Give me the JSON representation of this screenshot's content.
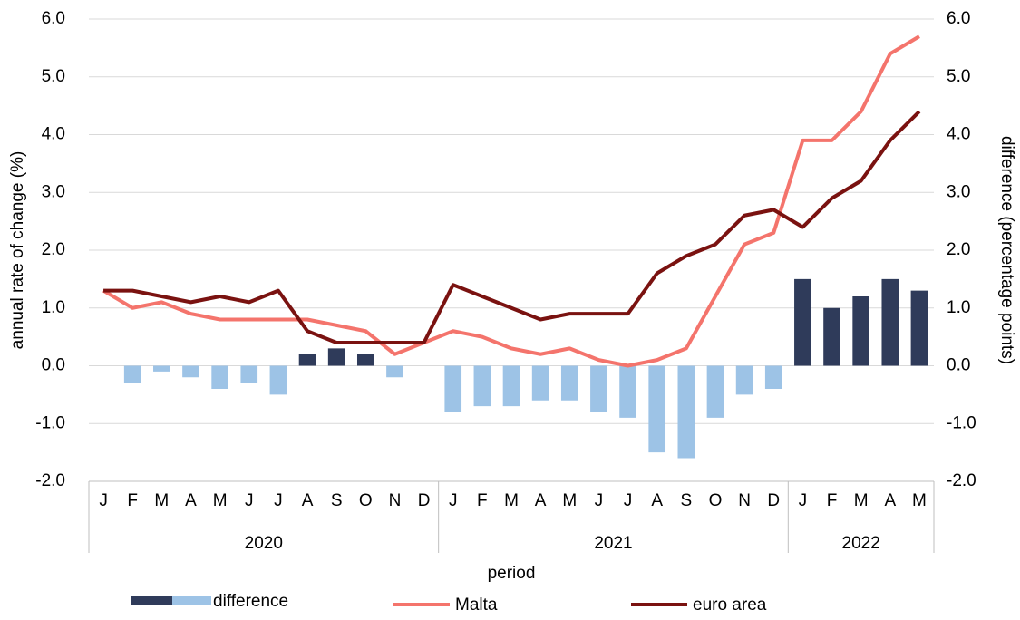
{
  "chart_data": {
    "type": "combo",
    "x_label": "period",
    "y_label": "annual rate of change (%)",
    "y2_label": "difference (percentage points)",
    "category_groups": [
      {
        "label": "2020",
        "categories": [
          "J",
          "F",
          "M",
          "A",
          "M",
          "J",
          "J",
          "A",
          "S",
          "O",
          "N",
          "D"
        ]
      },
      {
        "label": "2021",
        "categories": [
          "J",
          "F",
          "M",
          "A",
          "M",
          "J",
          "J",
          "A",
          "S",
          "O",
          "N",
          "D"
        ]
      },
      {
        "label": "2022",
        "categories": [
          "J",
          "F",
          "M",
          "A",
          "M"
        ]
      }
    ],
    "ylim": [
      -2,
      6
    ],
    "yticks": [
      {
        "value": -2,
        "label": "-2.0"
      },
      {
        "value": -1,
        "label": "-1.0"
      },
      {
        "value": 0,
        "label": "0.0"
      },
      {
        "value": 1,
        "label": "1.0"
      },
      {
        "value": 2,
        "label": "2.0"
      },
      {
        "value": 3,
        "label": "3.0"
      },
      {
        "value": 4,
        "label": "4.0"
      },
      {
        "value": 5,
        "label": "5.0"
      },
      {
        "value": 6,
        "label": "6.0"
      }
    ],
    "y2lim": [
      -2,
      6
    ],
    "y2ticks": [
      {
        "value": -2,
        "label": "-2.0"
      },
      {
        "value": -1,
        "label": "-1.0"
      },
      {
        "value": 0,
        "label": "0.0"
      },
      {
        "value": 1,
        "label": "1.0"
      },
      {
        "value": 2,
        "label": "2.0"
      },
      {
        "value": 3,
        "label": "3.0"
      },
      {
        "value": 4,
        "label": "4.0"
      },
      {
        "value": 5,
        "label": "5.0"
      },
      {
        "value": 6,
        "label": "6.0"
      }
    ],
    "grid": true,
    "legend": "bottom",
    "series": [
      {
        "name": "difference",
        "type": "bar",
        "axis": "y2",
        "positive_color": "#2f3b5a",
        "negative_color": "#9dc3e6",
        "values": [
          0,
          -0.3,
          -0.1,
          -0.2,
          -0.4,
          -0.3,
          -0.5,
          0.2,
          0.3,
          0.2,
          -0.2,
          0,
          -0.8,
          -0.7,
          -0.7,
          -0.6,
          -0.6,
          -0.8,
          -0.9,
          -1.5,
          -1.6,
          -0.9,
          -0.5,
          -0.4,
          1.5,
          1.0,
          1.2,
          1.5,
          1.3
        ]
      },
      {
        "name": "Malta",
        "type": "line",
        "color": "#f4746c",
        "values": [
          1.3,
          1.0,
          1.1,
          0.9,
          0.8,
          0.8,
          0.8,
          0.8,
          0.7,
          0.6,
          0.2,
          0.4,
          0.6,
          0.5,
          0.3,
          0.2,
          0.3,
          0.1,
          0.0,
          0.1,
          0.3,
          1.2,
          2.1,
          2.3,
          3.9,
          3.9,
          4.4,
          5.4,
          5.7
        ]
      },
      {
        "name": "euro area",
        "type": "line",
        "color": "#7a1210",
        "values": [
          1.3,
          1.3,
          1.2,
          1.1,
          1.2,
          1.1,
          1.3,
          0.6,
          0.4,
          0.4,
          0.4,
          0.4,
          1.4,
          1.2,
          1.0,
          0.8,
          0.9,
          0.9,
          0.9,
          1.6,
          1.9,
          2.1,
          2.6,
          2.7,
          2.4,
          2.9,
          3.2,
          3.9,
          4.4
        ]
      }
    ]
  }
}
